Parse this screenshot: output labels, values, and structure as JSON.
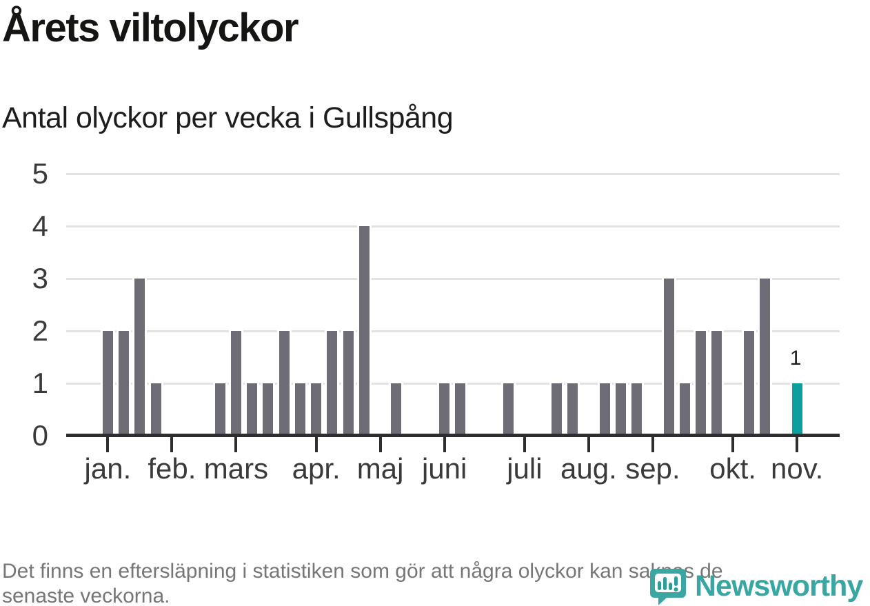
{
  "header": {
    "title": "Årets viltolyckor",
    "subtitle": "Antal olyckor per vecka i Gullspång"
  },
  "chart_data": {
    "type": "bar",
    "title": "Årets viltolyckor",
    "subtitle": "Antal olyckor per vecka i Gullspång",
    "x_unit": "vecka",
    "values": [
      2,
      2,
      3,
      1,
      0,
      0,
      0,
      1,
      2,
      1,
      1,
      2,
      1,
      1,
      2,
      2,
      4,
      0,
      1,
      0,
      0,
      1,
      1,
      0,
      0,
      1,
      0,
      0,
      1,
      1,
      0,
      1,
      1,
      1,
      0,
      3,
      1,
      2,
      2,
      0,
      2,
      3,
      0,
      1
    ],
    "ylim": [
      0,
      5
    ],
    "y_ticks": [
      0,
      1,
      2,
      3,
      4,
      5
    ],
    "grid": true,
    "legend": "none",
    "x_tick_labels": [
      "jan.",
      "feb.",
      "mars",
      "apr.",
      "maj",
      "juni",
      "juli",
      "aug.",
      "sep.",
      "okt.",
      "nov."
    ],
    "x_tick_week_index": [
      0,
      4,
      8,
      13,
      17,
      21,
      26,
      30,
      34,
      39,
      43
    ],
    "highlight_index": 43,
    "annotation": {
      "index": 43,
      "label": "1"
    },
    "bar_color": "#6e6d75",
    "highlight_color": "#0ba09d"
  },
  "footer": {
    "note_line1": "Det finns en eftersläpning i statistiken som gör att några olyckor kan saknas de",
    "note_line2": "senaste veckorna."
  },
  "branding": {
    "logo_text": "Newsworthy",
    "logo_color": "#38a6a2",
    "logo_icon": "newsworthy-bubble-chart-icon"
  }
}
